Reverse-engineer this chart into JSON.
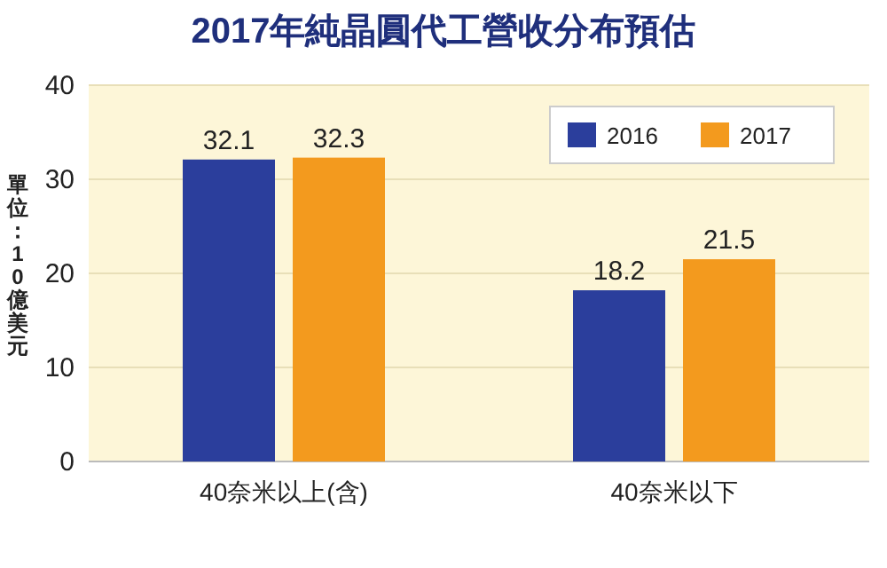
{
  "chart_data": {
    "type": "bar",
    "title": "2017年純晶圓代工營收分布預估",
    "ylabel": "單位：10億美元",
    "categories": [
      "40奈米以上(含)",
      "40奈米以下"
    ],
    "series": [
      {
        "name": "2016",
        "color": "#2b3e9c",
        "values": [
          32.1,
          18.2
        ]
      },
      {
        "name": "2017",
        "color": "#f39a1e",
        "values": [
          32.3,
          21.5
        ]
      }
    ],
    "ylim": [
      0,
      40
    ],
    "yticks": [
      0,
      10,
      20,
      30,
      40
    ],
    "grid": "y",
    "legend": "top right",
    "data_labels": true
  }
}
